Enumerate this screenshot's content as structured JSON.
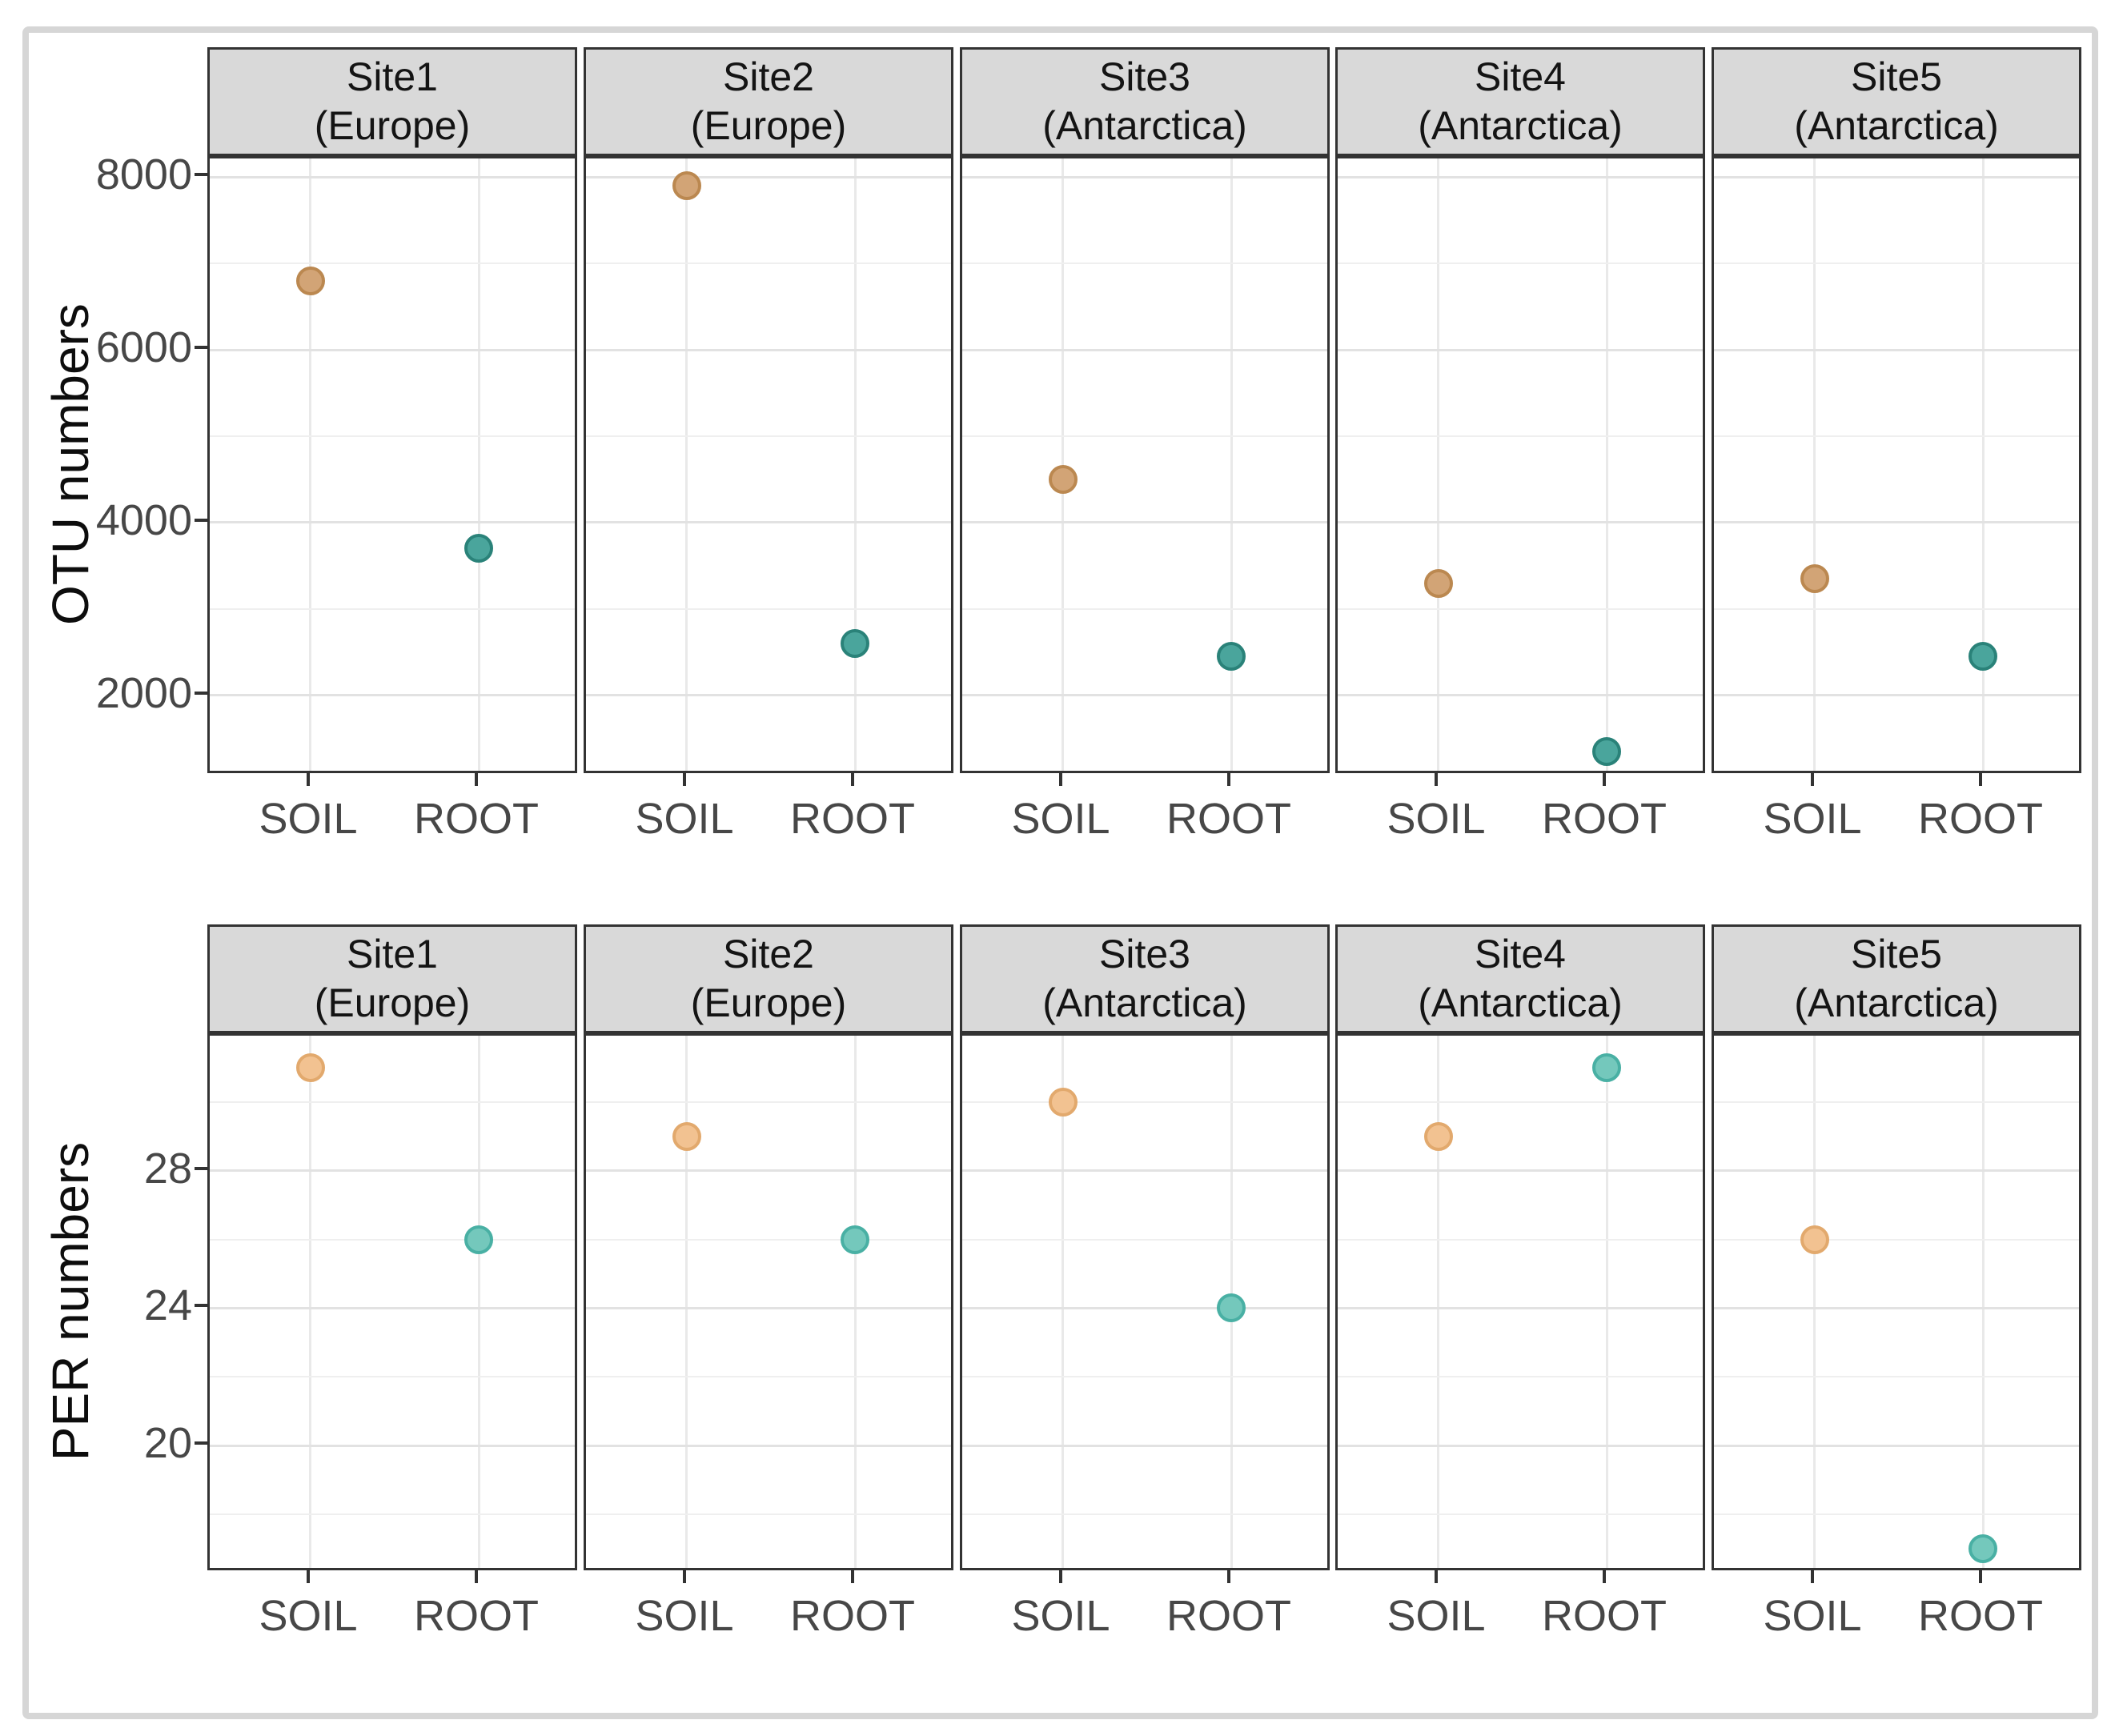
{
  "chart_data": {
    "type": "scatter",
    "description": "Faceted dot plot, 2 rows x 5 site columns, points for SOIL and ROOT",
    "categories": [
      "SOIL",
      "ROOT"
    ],
    "facets": [
      {
        "title": "Site1",
        "subtitle": "(Europe)"
      },
      {
        "title": "Site2",
        "subtitle": "(Europe)"
      },
      {
        "title": "Site3",
        "subtitle": "(Antarctica)"
      },
      {
        "title": "Site4",
        "subtitle": "(Antarctica)"
      },
      {
        "title": "Site5",
        "subtitle": "(Antarctica)"
      }
    ],
    "rows": [
      {
        "ylabel": "OTU numbers",
        "ylim": [
          1074,
          8213
        ],
        "yticks": [
          2000,
          4000,
          6000,
          8000
        ],
        "yticks_minor": [
          3000,
          5000,
          7000
        ],
        "grid": true,
        "legend": "none",
        "series": [
          {
            "name": "SOIL",
            "values": [
              6800,
              7900,
              4500,
              3300,
              3350
            ]
          },
          {
            "name": "ROOT",
            "values": [
              3700,
              2600,
              2450,
              1350,
              2450
            ]
          }
        ],
        "colors": {
          "SOIL": {
            "fill": "#d2a476",
            "stroke": "#bb8850"
          },
          "ROOT": {
            "fill": "#4aa59c",
            "stroke": "#2a8279"
          }
        }
      },
      {
        "ylabel": "PER numbers",
        "ylim": [
          16.3,
          31.93
        ],
        "yticks": [
          20,
          24,
          28
        ],
        "yticks_minor": [
          18,
          22,
          26,
          30
        ],
        "grid": true,
        "legend": "none",
        "series": [
          {
            "name": "SOIL",
            "values": [
              31,
              29,
              30,
              29,
              26
            ]
          },
          {
            "name": "ROOT",
            "values": [
              26,
              26,
              24,
              31,
              17
            ]
          }
        ],
        "colors": {
          "SOIL": {
            "fill": "#f2c291",
            "stroke": "#e2a96d"
          },
          "ROOT": {
            "fill": "#74c8bc",
            "stroke": "#49b0a4"
          }
        }
      }
    ]
  }
}
